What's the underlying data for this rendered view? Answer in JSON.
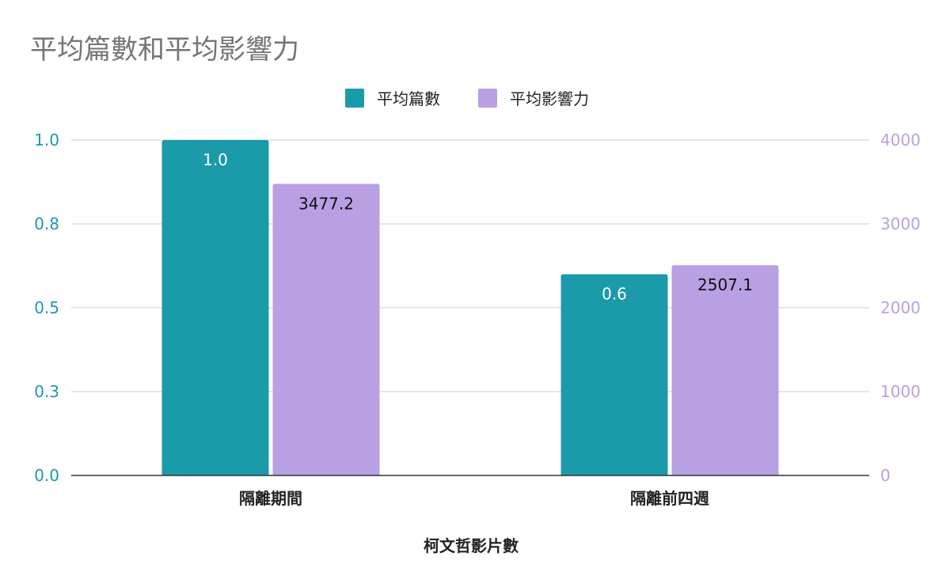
{
  "chart_data": {
    "type": "bar",
    "title": "平均篇數和平均影響力",
    "xlabel": "柯文哲影片數",
    "categories": [
      "隔離期間",
      "隔離前四週"
    ],
    "series": [
      {
        "name": "平均篇數",
        "axis": "left",
        "values": [
          1.0,
          0.6
        ],
        "labels": [
          "1.0",
          "0.6"
        ],
        "color": "#1b9aaa",
        "label_color": "#ffffff"
      },
      {
        "name": "平均影響力",
        "axis": "right",
        "values": [
          3477.2,
          2507.1
        ],
        "labels": [
          "3477.2",
          "2507.1"
        ],
        "color": "#b8a0e3",
        "label_color": "#111111"
      }
    ],
    "y_left": {
      "range": [
        0,
        1.0
      ],
      "ticks": [
        0,
        0.25,
        0.5,
        0.75,
        1.0
      ],
      "tick_labels": [
        "0.0",
        "0.3",
        "0.5",
        "0.8",
        "1.0"
      ],
      "color": "#1b9aaa"
    },
    "y_right": {
      "range": [
        0,
        4000
      ],
      "ticks": [
        0,
        1000,
        2000,
        3000,
        4000
      ],
      "tick_labels": [
        "0",
        "1000",
        "2000",
        "3000",
        "4000"
      ],
      "color": "#b8a0e3"
    },
    "grid": true,
    "legend_position": "top-center"
  }
}
